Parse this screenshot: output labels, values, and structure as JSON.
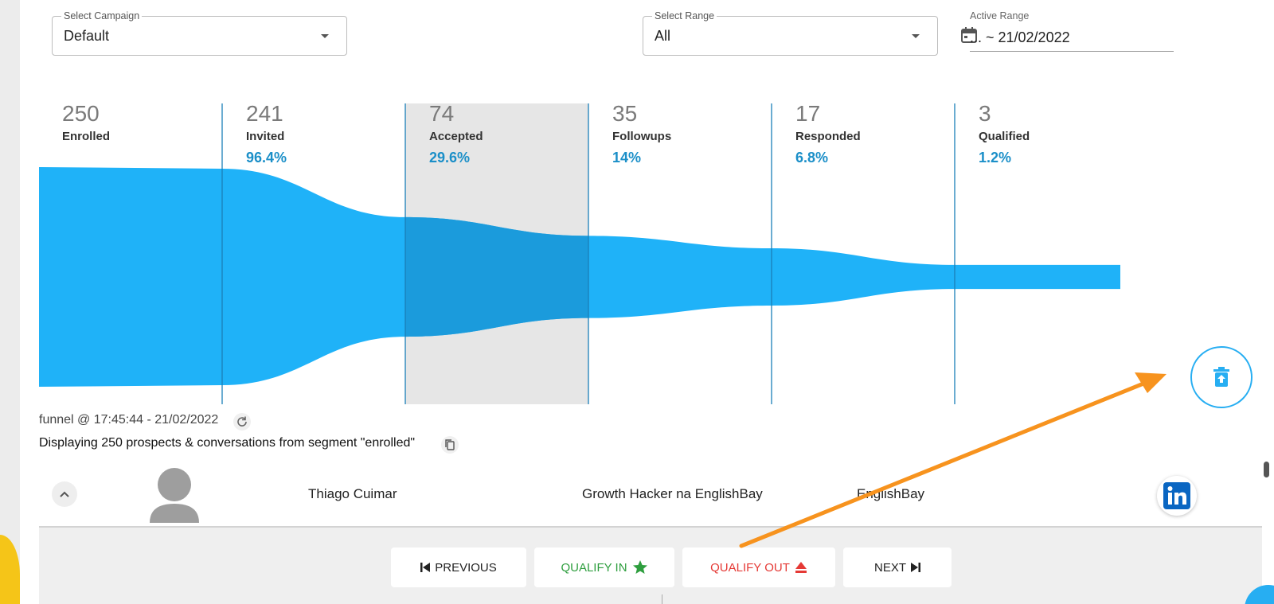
{
  "filters": {
    "campaign": {
      "label": "Select Campaign",
      "value": "Default"
    },
    "range": {
      "label": "Select Range",
      "value": "All"
    },
    "active_range": {
      "label": "Active Range",
      "value": "... ~ 21/02/2022"
    }
  },
  "funnel": {
    "stages": [
      {
        "count": "250",
        "label": "Enrolled",
        "pct": ""
      },
      {
        "count": "241",
        "label": "Invited",
        "pct": "96.4%"
      },
      {
        "count": "74",
        "label": "Accepted",
        "pct": "29.6%"
      },
      {
        "count": "35",
        "label": "Followups",
        "pct": "14%"
      },
      {
        "count": "17",
        "label": "Responded",
        "pct": "6.8%"
      },
      {
        "count": "3",
        "label": "Qualified",
        "pct": "1.2%"
      }
    ],
    "selected_stage": "Accepted",
    "colors": {
      "flow": "#1fb2f8",
      "flow_selected": "#1b9bdc",
      "divider": "#1b7fb8",
      "selected_bg": "#e6e6e6",
      "pct": "#1b8fc8"
    }
  },
  "status": {
    "timestamp": "funnel @ 17:45:44 - 21/02/2022",
    "segment": "Displaying 250 prospects & conversations from segment \"enrolled\""
  },
  "prospect": {
    "name": "Thiago Cuimar",
    "title": "Growth Hacker na EnglishBay",
    "company": "EnglishBay"
  },
  "actions": {
    "previous": "PREVIOUS",
    "qualify_in": "QUALIFY IN",
    "qualify_out": "QUALIFY OUT",
    "next": "NEXT",
    "colors": {
      "qualify_in": "#2e9e3e",
      "qualify_out": "#e53935"
    }
  },
  "annotation": {
    "arrow_color": "#f7931e"
  }
}
